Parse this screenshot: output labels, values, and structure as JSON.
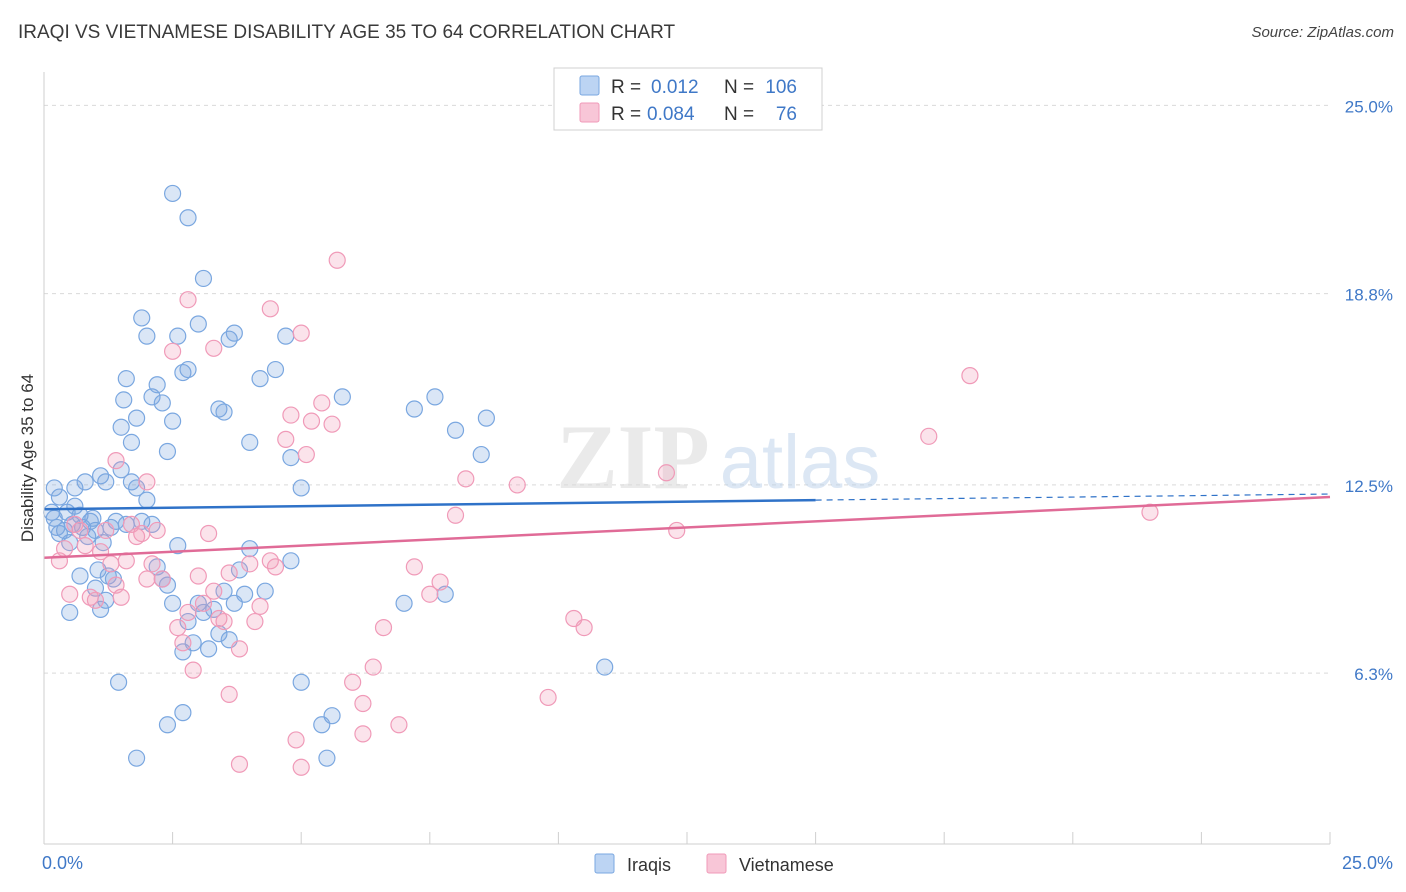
{
  "title": "IRAQI VS VIETNAMESE DISABILITY AGE 35 TO 64 CORRELATION CHART",
  "source": "Source: ZipAtlas.com",
  "watermark": {
    "zip": "ZIP",
    "atlas": "atlas"
  },
  "chart_data": {
    "type": "scatter",
    "title": "IRAQI VS VIETNAMESE DISABILITY AGE 35 TO 64 CORRELATION CHART",
    "xlabel": "",
    "ylabel": "Disability Age 35 to 64",
    "xlim": [
      0,
      25
    ],
    "ylim": [
      1.2,
      26.1
    ],
    "x_tick_labels": [
      "0.0%",
      "25.0%"
    ],
    "y_ticks": [
      {
        "value": 25.0,
        "label": "25.0%"
      },
      {
        "value": 18.8,
        "label": "18.8%"
      },
      {
        "value": 12.5,
        "label": "12.5%"
      },
      {
        "value": 6.3,
        "label": "6.3%"
      }
    ],
    "grid": "horizontal-dashed",
    "legend": {
      "position": "top-center",
      "entries": [
        {
          "series": "Iraqis",
          "r_label": "R =",
          "r_value": "0.012",
          "n_label": "N =",
          "n_value": "106"
        },
        {
          "series": "Vietnamese",
          "r_label": "R =",
          "r_value": "0.084",
          "n_label": "N =",
          "n_value": "76"
        }
      ]
    },
    "bottom_legend": [
      "Iraqis",
      "Vietnamese"
    ],
    "colors": {
      "iraqis": "#7aa7e0",
      "iraqis_line": "#2f72c8",
      "vietnamese": "#f09ab8",
      "vietnamese_line": "#e06b97",
      "axis_text": "#3f78c7",
      "grid": "#d9d9d9"
    },
    "series": [
      {
        "name": "Iraqis",
        "trend": {
          "x": [
            0,
            15
          ],
          "y": [
            11.7,
            12.0
          ],
          "dashed_extension_to": 25,
          "dashed_y_end": 12.2
        },
        "points": [
          [
            0.2,
            11.4
          ],
          [
            0.3,
            12.1
          ],
          [
            0.25,
            11.1
          ],
          [
            0.4,
            11.0
          ],
          [
            0.5,
            10.6
          ],
          [
            0.6,
            11.8
          ],
          [
            0.55,
            11.2
          ],
          [
            0.7,
            11.5
          ],
          [
            0.8,
            12.6
          ],
          [
            0.9,
            11.3
          ],
          [
            1.0,
            11.0
          ],
          [
            1.1,
            12.8
          ],
          [
            1.2,
            12.6
          ],
          [
            1.3,
            11.1
          ],
          [
            0.2,
            12.4
          ],
          [
            0.15,
            11.6
          ],
          [
            0.3,
            10.9
          ],
          [
            0.45,
            11.6
          ],
          [
            0.6,
            12.4
          ],
          [
            0.75,
            11.1
          ],
          [
            0.85,
            10.8
          ],
          [
            0.95,
            11.4
          ],
          [
            1.05,
            9.7
          ],
          [
            1.15,
            10.6
          ],
          [
            1.25,
            9.5
          ],
          [
            1.4,
            11.3
          ],
          [
            1.5,
            13.0
          ],
          [
            1.6,
            11.2
          ],
          [
            1.7,
            12.6
          ],
          [
            1.8,
            12.4
          ],
          [
            1.9,
            11.3
          ],
          [
            2.0,
            12.0
          ],
          [
            2.1,
            11.2
          ],
          [
            2.2,
            9.8
          ],
          [
            2.3,
            9.4
          ],
          [
            2.4,
            9.2
          ],
          [
            2.5,
            8.6
          ],
          [
            2.6,
            10.5
          ],
          [
            2.7,
            7.0
          ],
          [
            2.8,
            8.0
          ],
          [
            2.9,
            7.3
          ],
          [
            3.0,
            8.6
          ],
          [
            3.1,
            8.3
          ],
          [
            3.2,
            7.1
          ],
          [
            3.3,
            8.4
          ],
          [
            3.4,
            7.6
          ],
          [
            3.5,
            9.0
          ],
          [
            3.6,
            7.4
          ],
          [
            3.7,
            8.6
          ],
          [
            3.8,
            9.7
          ],
          [
            3.9,
            8.9
          ],
          [
            4.0,
            10.4
          ],
          [
            4.3,
            9.0
          ],
          [
            4.8,
            10.0
          ],
          [
            0.5,
            8.3
          ],
          [
            0.7,
            9.5
          ],
          [
            1.0,
            9.1
          ],
          [
            1.1,
            8.4
          ],
          [
            1.2,
            8.7
          ],
          [
            1.35,
            9.4
          ],
          [
            1.45,
            6.0
          ],
          [
            1.5,
            14.4
          ],
          [
            1.55,
            15.3
          ],
          [
            1.6,
            16.0
          ],
          [
            1.7,
            13.9
          ],
          [
            1.8,
            14.7
          ],
          [
            1.9,
            18.0
          ],
          [
            2.0,
            17.4
          ],
          [
            2.1,
            15.4
          ],
          [
            2.2,
            15.8
          ],
          [
            2.3,
            15.2
          ],
          [
            2.4,
            13.6
          ],
          [
            2.5,
            14.6
          ],
          [
            2.6,
            17.4
          ],
          [
            2.7,
            16.2
          ],
          [
            2.8,
            16.3
          ],
          [
            3.0,
            17.8
          ],
          [
            3.1,
            19.3
          ],
          [
            3.4,
            15.0
          ],
          [
            3.5,
            14.9
          ],
          [
            3.6,
            17.3
          ],
          [
            3.7,
            17.5
          ],
          [
            4.0,
            13.9
          ],
          [
            4.2,
            16.0
          ],
          [
            4.5,
            16.3
          ],
          [
            4.7,
            17.4
          ],
          [
            4.8,
            13.4
          ],
          [
            5.0,
            12.4
          ],
          [
            2.5,
            22.1
          ],
          [
            2.8,
            21.3
          ],
          [
            1.8,
            3.5
          ],
          [
            2.4,
            4.6
          ],
          [
            2.7,
            5.0
          ],
          [
            5.0,
            6.0
          ],
          [
            5.4,
            4.6
          ],
          [
            5.5,
            3.5
          ],
          [
            5.8,
            15.4
          ],
          [
            7.0,
            8.6
          ],
          [
            7.2,
            15.0
          ],
          [
            7.6,
            15.4
          ],
          [
            7.8,
            8.9
          ],
          [
            8.0,
            14.3
          ],
          [
            8.5,
            13.5
          ],
          [
            8.6,
            14.7
          ],
          [
            10.9,
            6.5
          ],
          [
            5.6,
            4.9
          ]
        ]
      },
      {
        "name": "Vietnamese",
        "trend": {
          "x": [
            0,
            25
          ],
          "y": [
            10.1,
            12.1
          ]
        },
        "points": [
          [
            0.3,
            10.0
          ],
          [
            0.4,
            10.4
          ],
          [
            0.5,
            8.9
          ],
          [
            0.6,
            11.2
          ],
          [
            0.7,
            11.0
          ],
          [
            0.8,
            10.5
          ],
          [
            0.9,
            8.8
          ],
          [
            1.0,
            8.7
          ],
          [
            1.1,
            10.3
          ],
          [
            1.2,
            11.0
          ],
          [
            1.3,
            9.9
          ],
          [
            1.4,
            13.3
          ],
          [
            1.5,
            8.8
          ],
          [
            1.6,
            10.0
          ],
          [
            1.7,
            11.2
          ],
          [
            1.8,
            10.8
          ],
          [
            1.9,
            10.9
          ],
          [
            2.0,
            12.6
          ],
          [
            2.1,
            9.9
          ],
          [
            2.2,
            11.0
          ],
          [
            2.3,
            9.4
          ],
          [
            2.6,
            7.8
          ],
          [
            2.7,
            7.3
          ],
          [
            2.8,
            8.3
          ],
          [
            2.9,
            6.4
          ],
          [
            3.0,
            9.5
          ],
          [
            3.1,
            8.6
          ],
          [
            3.2,
            10.9
          ],
          [
            3.3,
            9.0
          ],
          [
            3.4,
            8.1
          ],
          [
            3.5,
            8.0
          ],
          [
            3.6,
            9.6
          ],
          [
            3.8,
            7.1
          ],
          [
            4.0,
            9.9
          ],
          [
            4.1,
            8.0
          ],
          [
            4.2,
            8.5
          ],
          [
            4.4,
            10.0
          ],
          [
            4.5,
            9.8
          ],
          [
            2.5,
            16.9
          ],
          [
            2.8,
            18.6
          ],
          [
            3.3,
            17.0
          ],
          [
            3.6,
            5.6
          ],
          [
            3.8,
            3.3
          ],
          [
            4.4,
            18.3
          ],
          [
            4.7,
            14.0
          ],
          [
            4.8,
            14.8
          ],
          [
            5.0,
            17.5
          ],
          [
            5.1,
            13.5
          ],
          [
            5.2,
            14.6
          ],
          [
            5.4,
            15.2
          ],
          [
            5.6,
            14.5
          ],
          [
            5.7,
            19.9
          ],
          [
            6.0,
            6.0
          ],
          [
            6.2,
            5.3
          ],
          [
            6.4,
            6.5
          ],
          [
            6.6,
            7.8
          ],
          [
            6.9,
            4.6
          ],
          [
            7.2,
            9.8
          ],
          [
            7.5,
            8.9
          ],
          [
            7.7,
            9.3
          ],
          [
            8.0,
            11.5
          ],
          [
            8.2,
            12.7
          ],
          [
            9.2,
            12.5
          ],
          [
            9.8,
            5.5
          ],
          [
            10.3,
            8.1
          ],
          [
            10.5,
            7.8
          ],
          [
            12.1,
            12.9
          ],
          [
            12.3,
            11.0
          ],
          [
            17.2,
            14.1
          ],
          [
            18.0,
            16.1
          ],
          [
            21.5,
            11.6
          ],
          [
            1.4,
            9.2
          ],
          [
            2.0,
            9.4
          ],
          [
            5.0,
            3.2
          ],
          [
            4.9,
            4.1
          ],
          [
            6.2,
            4.3
          ]
        ]
      }
    ]
  }
}
